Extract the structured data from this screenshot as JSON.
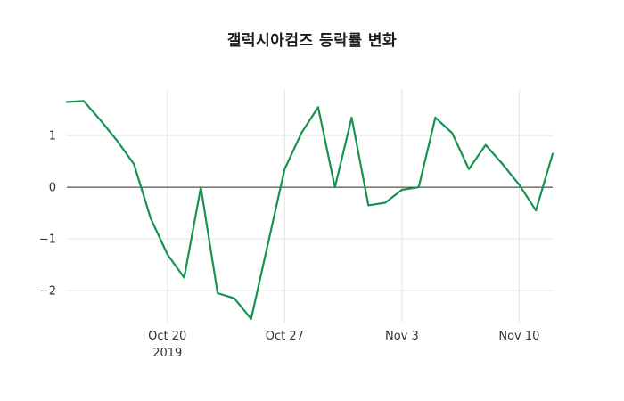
{
  "chart": {
    "title": "갤럭시아컴즈 등락률 변화"
  },
  "chart_data": {
    "type": "line",
    "title": "갤럭시아컴즈 등락률 변화",
    "x": [
      "2019-10-14",
      "2019-10-15",
      "2019-10-16",
      "2019-10-17",
      "2019-10-18",
      "2019-10-19",
      "2019-10-20",
      "2019-10-21",
      "2019-10-22",
      "2019-10-23",
      "2019-10-24",
      "2019-10-25",
      "2019-10-26",
      "2019-10-27",
      "2019-10-28",
      "2019-10-29",
      "2019-10-30",
      "2019-10-31",
      "2019-11-01",
      "2019-11-02",
      "2019-11-03",
      "2019-11-04",
      "2019-11-05",
      "2019-11-06",
      "2019-11-07",
      "2019-11-08",
      "2019-11-09",
      "2019-11-10",
      "2019-11-11",
      "2019-11-12"
    ],
    "series": [
      {
        "name": "등락률",
        "color": "#169350",
        "values": [
          1.65,
          1.67,
          1.3,
          0.9,
          0.45,
          -0.6,
          -1.3,
          -1.75,
          0.0,
          -2.05,
          -2.15,
          -2.55,
          -1.1,
          0.35,
          1.05,
          1.55,
          0.0,
          1.35,
          -0.35,
          -0.3,
          -0.05,
          0.0,
          1.35,
          1.05,
          0.35,
          0.82,
          0.45,
          0.05,
          -0.45,
          0.65
        ]
      }
    ],
    "x_ticks": [
      {
        "index": 6,
        "label": "Oct 20",
        "sublabel": "2019"
      },
      {
        "index": 13,
        "label": "Oct 27",
        "sublabel": ""
      },
      {
        "index": 20,
        "label": "Nov 3",
        "sublabel": ""
      },
      {
        "index": 27,
        "label": "Nov 10",
        "sublabel": ""
      }
    ],
    "y_ticks": [
      {
        "value": 1,
        "label": "1"
      },
      {
        "value": 0,
        "label": "0"
      },
      {
        "value": -1,
        "label": "−1"
      },
      {
        "value": -2,
        "label": "−2"
      }
    ],
    "ylim": [
      -2.62,
      1.9
    ],
    "zero_line": true,
    "grid": true,
    "grid_color": "#e4e4e4",
    "zero_line_color": "#2b2b2b",
    "legend": "none",
    "xlabel": "",
    "ylabel": ""
  }
}
